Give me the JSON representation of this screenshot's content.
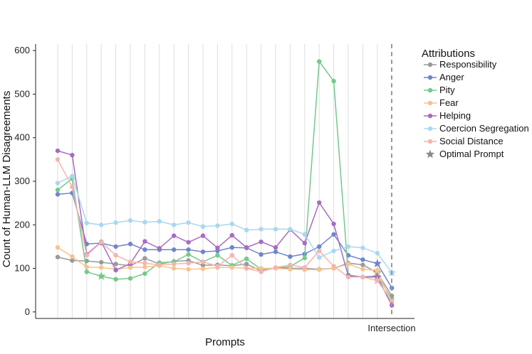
{
  "chart_data": {
    "type": "line",
    "xlabel": "Prompts",
    "ylabel": "Count of Human-LLM Disagreements",
    "ylim": [
      -15,
      615
    ],
    "yticks": [
      0,
      100,
      200,
      300,
      400,
      500,
      600
    ],
    "x_tick_labels": [
      "Intersection"
    ],
    "grid": "vertical gridlines only",
    "legend_position": "right",
    "legend_title": "Attributions",
    "n_points": 24,
    "series": [
      {
        "name": "Responsibility",
        "color": "#9a9a9a",
        "values": [
          126,
          118,
          117,
          114,
          110,
          106,
          123,
          110,
          116,
          118,
          107,
          108,
          106,
          110,
          94,
          101,
          100,
          100,
          98,
          100,
          112,
          108,
          90,
          37
        ],
        "star_index": 22
      },
      {
        "name": "Anger",
        "color": "#6f86c9",
        "values": [
          270,
          273,
          156,
          158,
          150,
          156,
          143,
          143,
          143,
          143,
          138,
          140,
          148,
          147,
          132,
          138,
          127,
          133,
          150,
          178,
          130,
          120,
          111,
          55
        ],
        "star_index": 22
      },
      {
        "name": "Pity",
        "color": "#74c98a",
        "values": [
          280,
          306,
          92,
          82,
          75,
          77,
          88,
          113,
          115,
          132,
          115,
          130,
          107,
          122,
          98,
          101,
          104,
          124,
          575,
          530,
          85,
          80,
          83,
          30
        ],
        "star_index": 3
      },
      {
        "name": "Fear",
        "color": "#f6c48c",
        "values": [
          148,
          127,
          103,
          102,
          98,
          102,
          103,
          106,
          100,
          98,
          99,
          102,
          102,
          100,
          100,
          100,
          98,
          97,
          97,
          100,
          110,
          98,
          95,
          20
        ],
        "star_index": 22
      },
      {
        "name": "Helping",
        "color": "#a86bc2",
        "values": [
          370,
          360,
          132,
          161,
          96,
          111,
          162,
          146,
          175,
          160,
          175,
          147,
          176,
          148,
          161,
          148,
          189,
          158,
          251,
          202,
          83,
          80,
          80,
          15
        ],
        "star_index": 22
      },
      {
        "name": "Coercion Segregation",
        "color": "#a8d8ef",
        "values": [
          296,
          312,
          204,
          200,
          205,
          210,
          206,
          208,
          200,
          205,
          196,
          198,
          202,
          188,
          190,
          190,
          190,
          178,
          125,
          140,
          150,
          147,
          135,
          90
        ],
        "star_index": 23
      },
      {
        "name": "Social Distance",
        "color": "#f4b4b0",
        "values": [
          350,
          287,
          130,
          160,
          130,
          115,
          112,
          108,
          110,
          112,
          115,
          105,
          130,
          100,
          92,
          102,
          108,
          102,
          140,
          105,
          80,
          80,
          72,
          25
        ],
        "star_index": 22
      }
    ],
    "legend_extra": "Optimal Prompt"
  }
}
